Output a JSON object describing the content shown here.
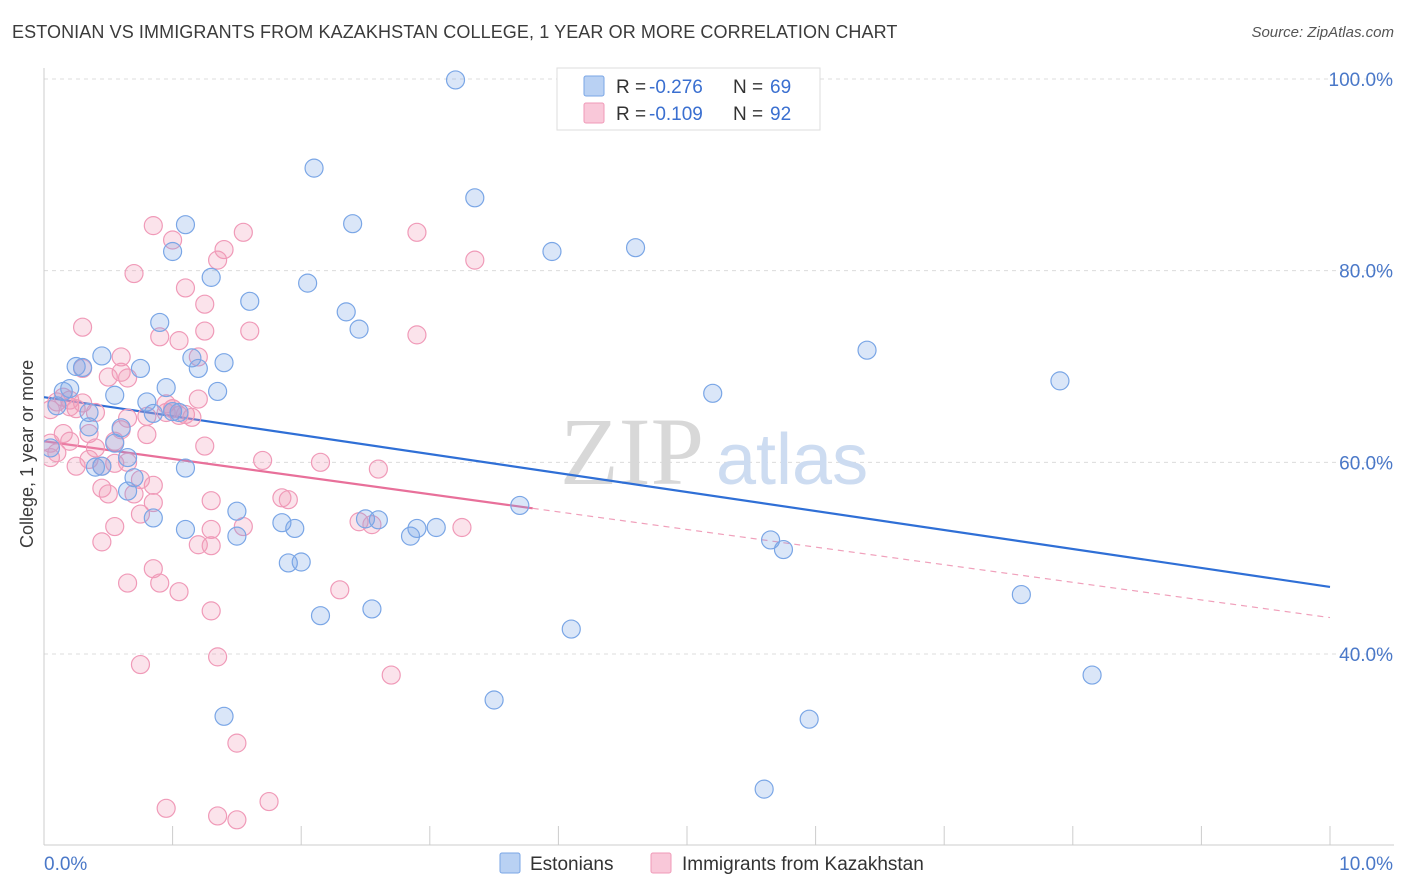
{
  "title": "ESTONIAN VS IMMIGRANTS FROM KAZAKHSTAN COLLEGE, 1 YEAR OR MORE CORRELATION CHART",
  "source": "Source: ZipAtlas.com",
  "legend": {
    "rows": [
      {
        "r_label": "R = ",
        "r_value": "-0.276",
        "n_label": "N = ",
        "n_value": "69",
        "color": "#7aa6e6"
      },
      {
        "r_label": "R = ",
        "r_value": "-0.109",
        "n_label": "N = ",
        "n_value": "92",
        "color": "#f09ab8"
      }
    ]
  },
  "chart_data": {
    "type": "scatter",
    "title": "ESTONIAN VS IMMIGRANTS FROM KAZAKHSTAN COLLEGE, 1 YEAR OR MORE CORRELATION CHART",
    "xlabel": "",
    "ylabel": "College, 1 year or more",
    "xlim": [
      0,
      10
    ],
    "ylim": [
      22,
      102
    ],
    "x_tick_labels": [
      "0.0%",
      "10.0%"
    ],
    "y_tick_labels": [
      "100.0%",
      "80.0%",
      "60.0%",
      "40.0%"
    ],
    "y_tick_values": [
      100,
      80,
      60,
      40
    ],
    "grid": true,
    "watermark": "ZIPatlas",
    "series": [
      {
        "name": "Estonians",
        "color": "#7aa6e6",
        "trend": {
          "x": [
            0.0,
            10.0
          ],
          "y": [
            66.8,
            47.0
          ],
          "style": "solid"
        },
        "points": [
          [
            0.05,
            61.5
          ],
          [
            0.1,
            65.9
          ],
          [
            0.15,
            67.4
          ],
          [
            0.2,
            67.7
          ],
          [
            0.25,
            70.0
          ],
          [
            0.3,
            69.9
          ],
          [
            0.35,
            65.2
          ],
          [
            0.35,
            63.7
          ],
          [
            0.45,
            59.6
          ],
          [
            0.4,
            59.5
          ],
          [
            0.45,
            71.1
          ],
          [
            0.55,
            67.0
          ],
          [
            0.55,
            62.0
          ],
          [
            0.6,
            63.6
          ],
          [
            0.65,
            60.5
          ],
          [
            0.65,
            57.0
          ],
          [
            0.7,
            58.4
          ],
          [
            0.75,
            69.8
          ],
          [
            0.8,
            66.3
          ],
          [
            0.85,
            65.1
          ],
          [
            0.85,
            54.2
          ],
          [
            0.9,
            74.6
          ],
          [
            0.95,
            67.8
          ],
          [
            1.0,
            65.3
          ],
          [
            1.05,
            65.2
          ],
          [
            1.0,
            82.0
          ],
          [
            1.1,
            53.0
          ],
          [
            1.1,
            59.4
          ],
          [
            1.1,
            84.8
          ],
          [
            1.15,
            70.9
          ],
          [
            1.2,
            69.8
          ],
          [
            1.3,
            79.3
          ],
          [
            1.35,
            67.4
          ],
          [
            1.4,
            70.4
          ],
          [
            1.4,
            33.5
          ],
          [
            1.5,
            52.3
          ],
          [
            1.5,
            54.9
          ],
          [
            1.6,
            76.8
          ],
          [
            1.85,
            53.7
          ],
          [
            1.9,
            49.5
          ],
          [
            1.95,
            53.1
          ],
          [
            2.0,
            49.6
          ],
          [
            2.05,
            78.7
          ],
          [
            2.1,
            90.7
          ],
          [
            2.15,
            44.0
          ],
          [
            2.35,
            75.7
          ],
          [
            2.4,
            84.9
          ],
          [
            2.45,
            73.9
          ],
          [
            2.5,
            54.1
          ],
          [
            2.55,
            44.7
          ],
          [
            2.6,
            54.0
          ],
          [
            2.85,
            52.3
          ],
          [
            2.9,
            53.1
          ],
          [
            3.05,
            53.2
          ],
          [
            3.2,
            99.9
          ],
          [
            3.35,
            87.6
          ],
          [
            3.5,
            35.2
          ],
          [
            3.7,
            55.5
          ],
          [
            3.95,
            82.0
          ],
          [
            4.1,
            42.6
          ],
          [
            4.6,
            82.4
          ],
          [
            5.2,
            67.2
          ],
          [
            5.6,
            25.9
          ],
          [
            5.65,
            51.9
          ],
          [
            5.75,
            50.9
          ],
          [
            5.95,
            33.2
          ],
          [
            6.4,
            71.7
          ],
          [
            7.6,
            46.2
          ],
          [
            7.9,
            68.5
          ],
          [
            8.15,
            37.8
          ]
        ]
      },
      {
        "name": "Immigrants from Kazakhstan",
        "color": "#f09ab8",
        "trend": {
          "x": [
            0.0,
            3.8,
            10.0
          ],
          "y": [
            62.2,
            55.2,
            43.8
          ],
          "style": "solid-then-dashed"
        },
        "points": [
          [
            0.05,
            62.0
          ],
          [
            0.05,
            60.5
          ],
          [
            0.05,
            65.5
          ],
          [
            0.1,
            66.3
          ],
          [
            0.15,
            66.8
          ],
          [
            0.15,
            63.0
          ],
          [
            0.2,
            65.8
          ],
          [
            0.2,
            62.2
          ],
          [
            0.25,
            65.6
          ],
          [
            0.25,
            59.6
          ],
          [
            0.3,
            74.1
          ],
          [
            0.3,
            69.8
          ],
          [
            0.3,
            66.2
          ],
          [
            0.35,
            63.0
          ],
          [
            0.35,
            60.3
          ],
          [
            0.4,
            65.2
          ],
          [
            0.4,
            61.5
          ],
          [
            0.45,
            59.6
          ],
          [
            0.45,
            57.3
          ],
          [
            0.45,
            51.7
          ],
          [
            0.5,
            68.9
          ],
          [
            0.5,
            56.7
          ],
          [
            0.55,
            53.3
          ],
          [
            0.55,
            62.2
          ],
          [
            0.6,
            71.0
          ],
          [
            0.6,
            69.4
          ],
          [
            0.6,
            63.4
          ],
          [
            0.65,
            68.8
          ],
          [
            0.65,
            64.6
          ],
          [
            0.65,
            60.0
          ],
          [
            0.65,
            47.4
          ],
          [
            0.7,
            56.7
          ],
          [
            0.7,
            79.7
          ],
          [
            0.75,
            58.2
          ],
          [
            0.75,
            54.6
          ],
          [
            0.75,
            38.9
          ],
          [
            0.8,
            64.8
          ],
          [
            0.8,
            62.9
          ],
          [
            0.85,
            55.8
          ],
          [
            0.85,
            48.9
          ],
          [
            0.85,
            84.7
          ],
          [
            0.85,
            57.6
          ],
          [
            0.9,
            73.1
          ],
          [
            0.9,
            47.4
          ],
          [
            0.95,
            66.1
          ],
          [
            0.95,
            65.2
          ],
          [
            0.95,
            23.9
          ],
          [
            1.0,
            83.2
          ],
          [
            1.0,
            65.6
          ],
          [
            1.05,
            64.9
          ],
          [
            1.05,
            72.7
          ],
          [
            1.05,
            46.5
          ],
          [
            1.1,
            78.2
          ],
          [
            1.1,
            65.0
          ],
          [
            1.15,
            64.7
          ],
          [
            1.2,
            71.0
          ],
          [
            1.2,
            66.6
          ],
          [
            1.2,
            51.4
          ],
          [
            1.25,
            73.7
          ],
          [
            1.25,
            61.7
          ],
          [
            1.25,
            76.5
          ],
          [
            1.3,
            56.0
          ],
          [
            1.3,
            53.0
          ],
          [
            1.3,
            51.3
          ],
          [
            1.3,
            44.5
          ],
          [
            1.35,
            39.7
          ],
          [
            1.35,
            23.1
          ],
          [
            1.35,
            81.1
          ],
          [
            1.4,
            82.2
          ],
          [
            1.5,
            30.7
          ],
          [
            1.5,
            22.7
          ],
          [
            1.55,
            84.0
          ],
          [
            1.55,
            53.3
          ],
          [
            1.6,
            73.7
          ],
          [
            1.7,
            60.2
          ],
          [
            1.75,
            24.6
          ],
          [
            1.85,
            56.3
          ],
          [
            1.9,
            56.1
          ],
          [
            2.15,
            60.0
          ],
          [
            2.3,
            46.7
          ],
          [
            2.45,
            53.8
          ],
          [
            2.55,
            53.5
          ],
          [
            2.6,
            59.3
          ],
          [
            2.7,
            37.8
          ],
          [
            2.9,
            84.0
          ],
          [
            2.9,
            73.3
          ],
          [
            3.25,
            53.2
          ],
          [
            3.35,
            81.1
          ],
          [
            0.1,
            61.0
          ],
          [
            0.2,
            66.5
          ],
          [
            0.55,
            59.9
          ],
          [
            1.0,
            65.6
          ]
        ]
      }
    ]
  }
}
